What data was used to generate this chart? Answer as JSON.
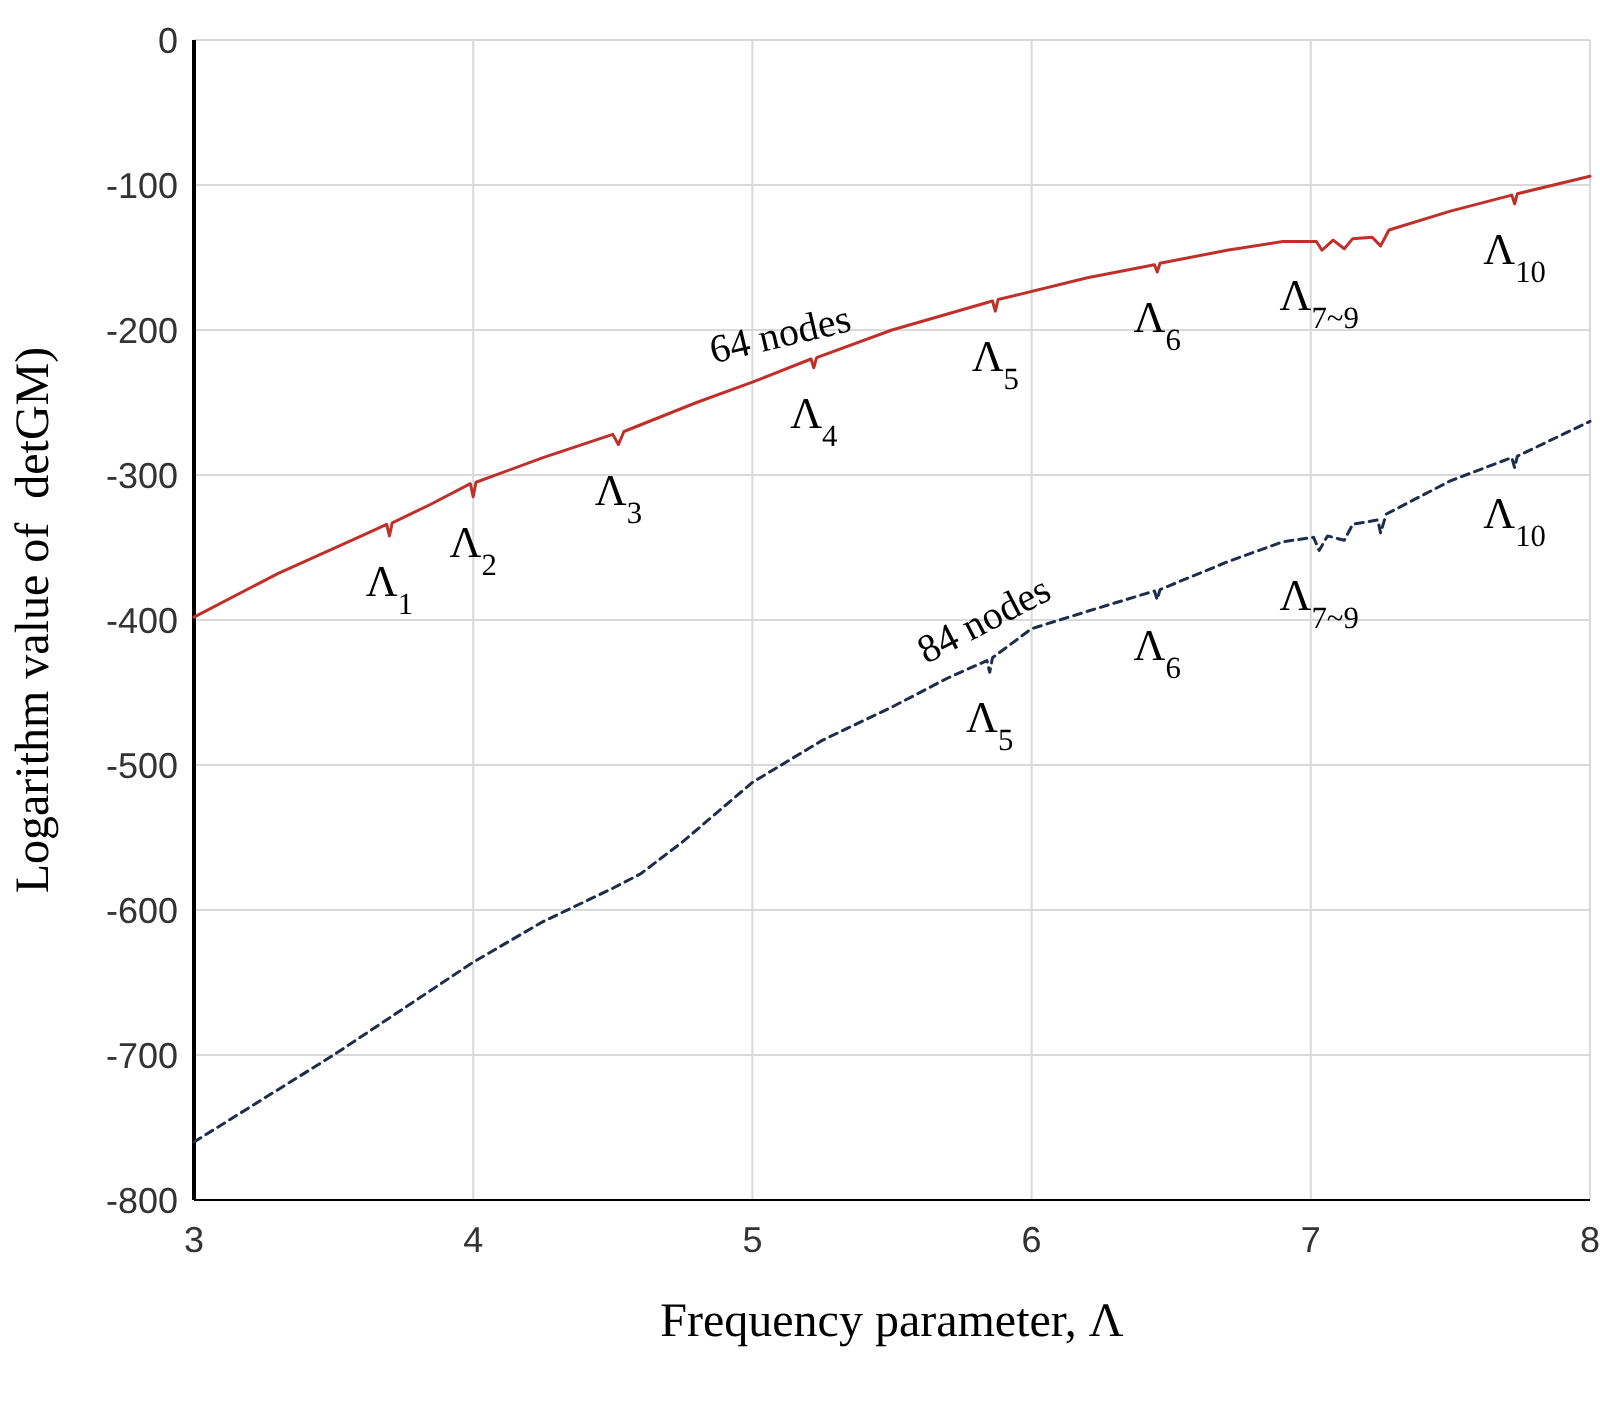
{
  "chart_data": {
    "type": "line",
    "xlabel": "Frequency parameter, Λ",
    "ylabel": "Logarithm value of  detGM)",
    "xlim": [
      3,
      8
    ],
    "ylim": [
      -800,
      0
    ],
    "xticks": [
      3,
      4,
      5,
      6,
      7,
      8
    ],
    "yticks": [
      -800,
      -700,
      -600,
      -500,
      -400,
      -300,
      -200,
      -100,
      0
    ],
    "grid": true,
    "marker": "none",
    "series": [
      {
        "name": "64 nodes",
        "color": "#c0302a",
        "line_style": "solid",
        "x": [
          3,
          3.3,
          3.6,
          3.69,
          3.7,
          3.71,
          3.85,
          3.99,
          4.0,
          4.01,
          4.25,
          4.5,
          4.52,
          4.54,
          4.8,
          5.0,
          5.21,
          5.22,
          5.23,
          5.5,
          5.86,
          5.87,
          5.88,
          6.2,
          6.44,
          6.45,
          6.46,
          6.7,
          6.9,
          7.02,
          7.04,
          7.08,
          7.12,
          7.15,
          7.22,
          7.25,
          7.28,
          7.5,
          7.72,
          7.73,
          7.74,
          8
        ],
        "values": [
          -398,
          -368,
          -342,
          -334,
          -342,
          -333,
          -320,
          -306,
          -315,
          -305,
          -288,
          -272,
          -279,
          -270,
          -250,
          -236,
          -220,
          -226,
          -219,
          -200,
          -180,
          -187,
          -179,
          -164,
          -155,
          -160,
          -154,
          -145,
          -139,
          -139,
          -145,
          -138,
          -144,
          -137,
          -136,
          -142,
          -131,
          -118,
          -107,
          -113,
          -106,
          -94
        ]
      },
      {
        "name": "84 nodes",
        "color": "#1f2d4d",
        "line_style": "dashed",
        "x": [
          3,
          3.25,
          3.5,
          3.75,
          4,
          4.25,
          4.5,
          4.6,
          4.75,
          5,
          5.25,
          5.5,
          5.7,
          5.84,
          5.85,
          5.86,
          6,
          6.2,
          6.44,
          6.45,
          6.46,
          6.7,
          6.9,
          7.01,
          7.03,
          7.06,
          7.12,
          7.15,
          7.24,
          7.25,
          7.27,
          7.5,
          7.72,
          7.73,
          7.74,
          8
        ],
        "values": [
          -760,
          -730,
          -700,
          -668,
          -636,
          -608,
          -585,
          -575,
          -553,
          -512,
          -483,
          -460,
          -440,
          -428,
          -436,
          -426,
          -406,
          -394,
          -380,
          -386,
          -379,
          -360,
          -346,
          -343,
          -352,
          -342,
          -345,
          -334,
          -331,
          -340,
          -327,
          -304,
          -288,
          -295,
          -287,
          -263
        ]
      }
    ],
    "annotations": [
      {
        "text": "Λ$_{1}$",
        "x": 3.7,
        "y": -342
      },
      {
        "text": "Λ$_{2}$",
        "x": 4.0,
        "y": -315
      },
      {
        "text": "Λ$_{3}$",
        "x": 4.52,
        "y": -279
      },
      {
        "text": "Λ$_{4}$",
        "x": 5.22,
        "y": -226
      },
      {
        "text": "Λ$_{5}$",
        "x": 5.87,
        "y": -187
      },
      {
        "text": "Λ$_{6}$",
        "x": 6.45,
        "y": -160
      },
      {
        "text": "Λ$_{7~9}$",
        "x": 7.03,
        "y": -145
      },
      {
        "text": "Λ$_{10}$",
        "x": 7.73,
        "y": -113
      },
      {
        "text": "Λ$_{5}$",
        "x": 5.85,
        "y": -436
      },
      {
        "text": "Λ$_{6}$",
        "x": 6.45,
        "y": -386
      },
      {
        "text": "Λ$_{7~9}$",
        "x": 7.03,
        "y": -352
      },
      {
        "text": "Λ$_{10}$",
        "x": 7.73,
        "y": -295
      }
    ]
  }
}
